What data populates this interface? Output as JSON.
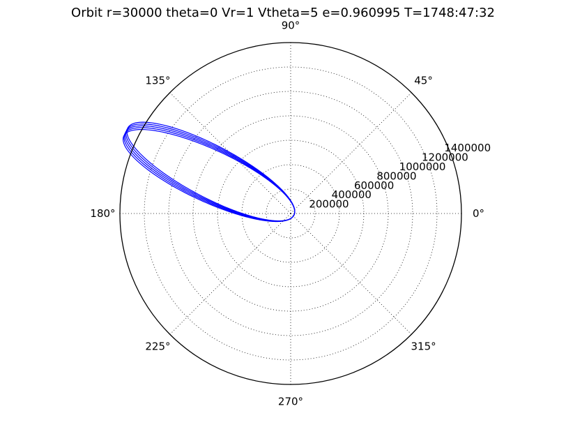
{
  "chart_data": {
    "type": "line",
    "projection": "polar",
    "title": "Orbit r=30000 theta=0 Vr=1 Vtheta=5 e=0.960995 T=1748:47:32",
    "angle_ticks": [
      {
        "deg": 0,
        "label": "0°"
      },
      {
        "deg": 45,
        "label": "45°"
      },
      {
        "deg": 90,
        "label": "90°"
      },
      {
        "deg": 135,
        "label": "135°"
      },
      {
        "deg": 180,
        "label": "180°"
      },
      {
        "deg": 225,
        "label": "225°"
      },
      {
        "deg": 270,
        "label": "270°"
      },
      {
        "deg": 315,
        "label": "315°"
      }
    ],
    "radial_ticks": [
      {
        "r": 200000,
        "label": "200000"
      },
      {
        "r": 400000,
        "label": "400000"
      },
      {
        "r": 600000,
        "label": "600000"
      },
      {
        "r": 800000,
        "label": "800000"
      },
      {
        "r": 1000000,
        "label": "1000000"
      },
      {
        "r": 1200000,
        "label": "1200000"
      },
      {
        "r": 1400000,
        "label": "1400000"
      }
    ],
    "rlim": [
      0,
      1400000
    ],
    "radial_label_angle_deg": 22.5,
    "grid": true,
    "series": [
      {
        "color": "#0000ff",
        "orbit": {
          "periapsis_r": 30000,
          "eccentricity": 0.960995,
          "revolutions": 5,
          "apoapsis_angles_deg": [
            152.3,
            153.0,
            153.7,
            154.4,
            155.1
          ]
        }
      }
    ]
  }
}
